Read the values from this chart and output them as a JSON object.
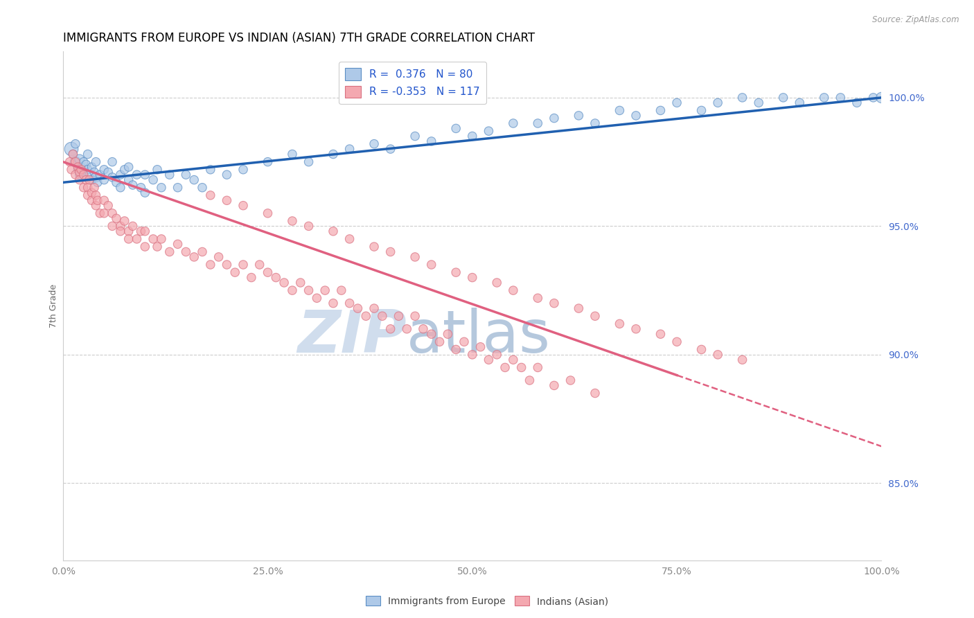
{
  "title": "IMMIGRANTS FROM EUROPE VS INDIAN (ASIAN) 7TH GRADE CORRELATION CHART",
  "source": "Source: ZipAtlas.com",
  "ylabel": "7th Grade",
  "ytick_values": [
    85.0,
    90.0,
    95.0,
    100.0
  ],
  "xmin": 0.0,
  "xmax": 100.0,
  "ymin": 82.0,
  "ymax": 101.8,
  "legend_blue_r": "R =  0.376",
  "legend_blue_n": "N = 80",
  "legend_pink_r": "R = -0.353",
  "legend_pink_n": "N = 117",
  "legend_blue_label": "Immigrants from Europe",
  "legend_pink_label": "Indians (Asian)",
  "blue_color": "#aec9e8",
  "pink_color": "#f4a8b0",
  "blue_edge_color": "#5b8ec4",
  "pink_edge_color": "#d97080",
  "blue_line_color": "#2060b0",
  "pink_line_color": "#e06080",
  "watermark_zip": "ZIP",
  "watermark_atlas": "atlas",
  "watermark_color_zip": "#c8d8ea",
  "watermark_color_atlas": "#a8bfd8",
  "title_fontsize": 12,
  "axis_label_fontsize": 9,
  "tick_fontsize": 10,
  "blue_line_x0": 0.0,
  "blue_line_y0": 96.7,
  "blue_line_x1": 100.0,
  "blue_line_y1": 100.0,
  "pink_line_x0": 0.0,
  "pink_line_y0": 97.5,
  "pink_line_x1": 75.0,
  "pink_line_y1": 89.2,
  "pink_line_dashed_x0": 75.0,
  "pink_line_dashed_x1": 100.0,
  "blue_points_x": [
    1.0,
    1.2,
    1.5,
    1.5,
    1.8,
    2.0,
    2.0,
    2.2,
    2.5,
    2.5,
    2.8,
    3.0,
    3.0,
    3.2,
    3.5,
    3.5,
    3.8,
    4.0,
    4.0,
    4.2,
    4.5,
    5.0,
    5.0,
    5.5,
    6.0,
    6.0,
    6.5,
    7.0,
    7.0,
    7.5,
    8.0,
    8.0,
    8.5,
    9.0,
    9.5,
    10.0,
    10.0,
    11.0,
    11.5,
    12.0,
    13.0,
    14.0,
    15.0,
    16.0,
    17.0,
    18.0,
    20.0,
    22.0,
    25.0,
    28.0,
    30.0,
    33.0,
    35.0,
    38.0,
    40.0,
    43.0,
    45.0,
    48.0,
    50.0,
    52.0,
    55.0,
    58.0,
    60.0,
    63.0,
    65.0,
    68.0,
    70.0,
    73.0,
    75.0,
    78.0,
    80.0,
    83.0,
    85.0,
    88.0,
    90.0,
    93.0,
    95.0,
    97.0,
    99.0,
    100.0
  ],
  "blue_points_y": [
    98.0,
    97.8,
    97.5,
    98.2,
    97.2,
    97.6,
    97.0,
    97.3,
    97.5,
    97.1,
    97.4,
    97.2,
    97.8,
    97.0,
    97.3,
    96.8,
    97.1,
    96.9,
    97.5,
    96.7,
    97.0,
    97.2,
    96.8,
    97.1,
    96.9,
    97.5,
    96.7,
    97.0,
    96.5,
    97.2,
    96.8,
    97.3,
    96.6,
    97.0,
    96.5,
    97.0,
    96.3,
    96.8,
    97.2,
    96.5,
    97.0,
    96.5,
    97.0,
    96.8,
    96.5,
    97.2,
    97.0,
    97.2,
    97.5,
    97.8,
    97.5,
    97.8,
    98.0,
    98.2,
    98.0,
    98.5,
    98.3,
    98.8,
    98.5,
    98.7,
    99.0,
    99.0,
    99.2,
    99.3,
    99.0,
    99.5,
    99.3,
    99.5,
    99.8,
    99.5,
    99.8,
    100.0,
    99.8,
    100.0,
    99.8,
    100.0,
    100.0,
    99.8,
    100.0,
    100.0
  ],
  "blue_sizes": [
    200,
    80,
    120,
    80,
    80,
    100,
    80,
    80,
    80,
    80,
    80,
    80,
    80,
    80,
    80,
    80,
    80,
    100,
    80,
    80,
    80,
    80,
    80,
    80,
    80,
    80,
    80,
    80,
    80,
    80,
    80,
    80,
    80,
    80,
    80,
    80,
    80,
    80,
    80,
    80,
    80,
    80,
    80,
    80,
    80,
    80,
    80,
    80,
    80,
    80,
    80,
    80,
    80,
    80,
    80,
    80,
    80,
    80,
    80,
    80,
    80,
    80,
    80,
    80,
    80,
    80,
    80,
    80,
    80,
    80,
    80,
    80,
    80,
    80,
    80,
    80,
    80,
    80,
    80,
    120
  ],
  "pink_points_x": [
    0.8,
    1.0,
    1.2,
    1.5,
    1.5,
    1.8,
    2.0,
    2.0,
    2.2,
    2.5,
    2.5,
    2.8,
    3.0,
    3.0,
    3.2,
    3.5,
    3.5,
    3.8,
    4.0,
    4.0,
    4.2,
    4.5,
    5.0,
    5.0,
    5.5,
    6.0,
    6.0,
    6.5,
    7.0,
    7.0,
    7.5,
    8.0,
    8.0,
    8.5,
    9.0,
    9.5,
    10.0,
    10.0,
    11.0,
    11.5,
    12.0,
    13.0,
    14.0,
    15.0,
    16.0,
    17.0,
    18.0,
    19.0,
    20.0,
    21.0,
    22.0,
    23.0,
    24.0,
    25.0,
    26.0,
    27.0,
    28.0,
    29.0,
    30.0,
    31.0,
    32.0,
    33.0,
    34.0,
    35.0,
    36.0,
    37.0,
    38.0,
    39.0,
    40.0,
    41.0,
    42.0,
    43.0,
    44.0,
    45.0,
    46.0,
    47.0,
    48.0,
    49.0,
    50.0,
    51.0,
    52.0,
    53.0,
    54.0,
    55.0,
    56.0,
    57.0,
    58.0,
    60.0,
    62.0,
    65.0,
    18.0,
    20.0,
    22.0,
    25.0,
    28.0,
    30.0,
    33.0,
    35.0,
    38.0,
    40.0,
    43.0,
    45.0,
    48.0,
    50.0,
    53.0,
    55.0,
    58.0,
    60.0,
    63.0,
    65.0,
    68.0,
    70.0,
    73.0,
    75.0,
    78.0,
    80.0,
    83.0
  ],
  "pink_points_y": [
    97.5,
    97.2,
    97.8,
    97.5,
    97.0,
    97.3,
    97.1,
    96.8,
    97.2,
    97.0,
    96.5,
    96.8,
    96.5,
    96.2,
    96.8,
    96.3,
    96.0,
    96.5,
    96.2,
    95.8,
    96.0,
    95.5,
    96.0,
    95.5,
    95.8,
    95.5,
    95.0,
    95.3,
    95.0,
    94.8,
    95.2,
    94.8,
    94.5,
    95.0,
    94.5,
    94.8,
    94.2,
    94.8,
    94.5,
    94.2,
    94.5,
    94.0,
    94.3,
    94.0,
    93.8,
    94.0,
    93.5,
    93.8,
    93.5,
    93.2,
    93.5,
    93.0,
    93.5,
    93.2,
    93.0,
    92.8,
    92.5,
    92.8,
    92.5,
    92.2,
    92.5,
    92.0,
    92.5,
    92.0,
    91.8,
    91.5,
    91.8,
    91.5,
    91.0,
    91.5,
    91.0,
    91.5,
    91.0,
    90.8,
    90.5,
    90.8,
    90.2,
    90.5,
    90.0,
    90.3,
    89.8,
    90.0,
    89.5,
    89.8,
    89.5,
    89.0,
    89.5,
    88.8,
    89.0,
    88.5,
    96.2,
    96.0,
    95.8,
    95.5,
    95.2,
    95.0,
    94.8,
    94.5,
    94.2,
    94.0,
    93.8,
    93.5,
    93.2,
    93.0,
    92.8,
    92.5,
    92.2,
    92.0,
    91.8,
    91.5,
    91.2,
    91.0,
    90.8,
    90.5,
    90.2,
    90.0,
    89.8
  ],
  "pink_sizes": [
    80,
    80,
    80,
    80,
    80,
    80,
    80,
    80,
    80,
    80,
    80,
    80,
    80,
    80,
    80,
    80,
    80,
    80,
    80,
    80,
    80,
    80,
    80,
    80,
    80,
    80,
    80,
    80,
    80,
    80,
    80,
    80,
    80,
    80,
    80,
    80,
    80,
    80,
    80,
    80,
    80,
    80,
    80,
    80,
    80,
    80,
    80,
    80,
    80,
    80,
    80,
    80,
    80,
    80,
    80,
    80,
    80,
    80,
    80,
    80,
    80,
    80,
    80,
    80,
    80,
    80,
    80,
    80,
    80,
    80,
    80,
    80,
    80,
    80,
    80,
    80,
    80,
    80,
    80,
    80,
    80,
    80,
    80,
    80,
    80,
    80,
    80,
    80,
    80,
    80,
    80,
    80,
    80,
    80,
    80,
    80,
    80,
    80,
    80,
    80,
    80,
    80,
    80,
    80,
    80,
    80,
    80,
    80,
    80,
    80,
    80,
    80,
    80,
    80,
    80,
    80,
    80
  ]
}
